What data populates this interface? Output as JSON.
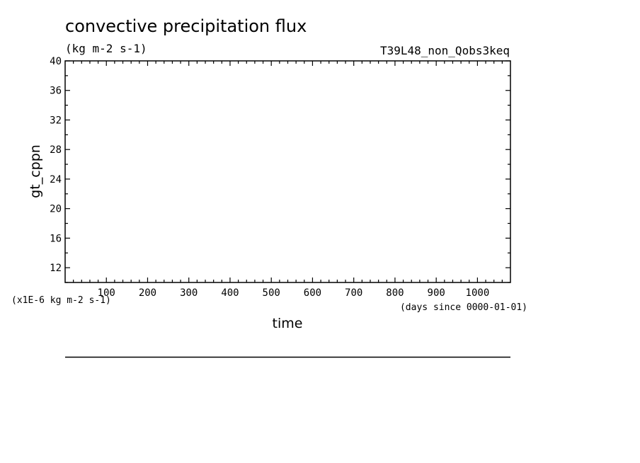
{
  "chart_data": {
    "type": "line",
    "title": "convective precipitation flux",
    "subtitle": "(kg m-2 s-1)",
    "run_label": "T39L48_non_Qobs3keq",
    "xlabel": "time",
    "x_units": "(days since 0000-01-01)",
    "ylabel": "gt_cppn",
    "y_scale_note": "(x1E-6 kg m-2 s-1)",
    "xlim": [
      0,
      1080
    ],
    "ylim": [
      10,
      40
    ],
    "x_ticks": [
      100,
      200,
      300,
      400,
      500,
      600,
      700,
      800,
      900,
      1000
    ],
    "y_ticks": [
      12,
      16,
      20,
      24,
      28,
      32,
      36,
      40
    ],
    "grid": false,
    "series": []
  },
  "colors": {
    "axis": "#000000",
    "background": "#ffffff"
  }
}
